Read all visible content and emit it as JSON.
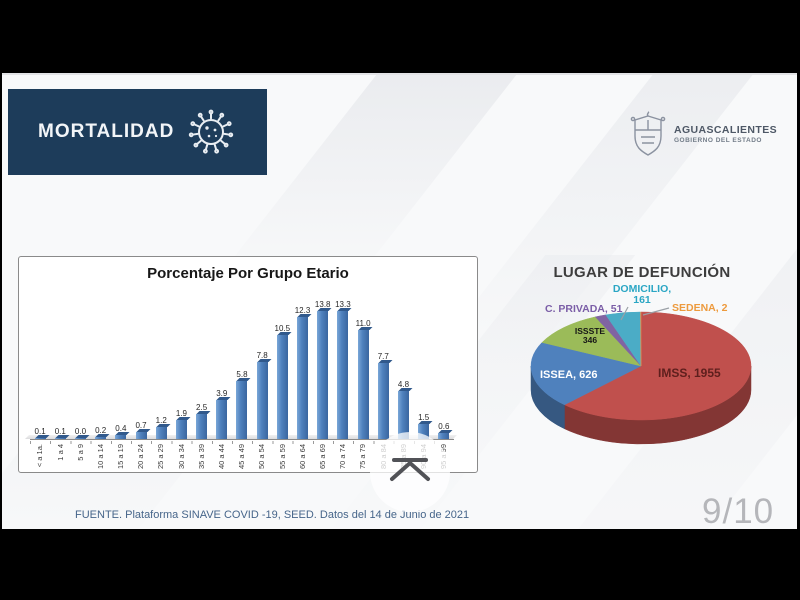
{
  "header": {
    "title": "MORTALIDAD",
    "logo_title": "AGUASCALIENTES",
    "logo_subtitle": "GOBIERNO DEL ESTADO"
  },
  "footer": {
    "source": "FUENTE. Plataforma SINAVE COVID -19, SEED. Datos del 14 de Junio de 2021"
  },
  "frame": {
    "page_indicator": "9/10"
  },
  "watermark": {
    "icon": "chevron-up-with-bar-icon"
  },
  "chart_data": [
    {
      "type": "bar",
      "title": "Porcentaje Por Grupo Etario",
      "categories": [
        "< a 1a.",
        "1 a 4",
        "5 a 9",
        "10 a 14",
        "15 a 19",
        "20 a 24",
        "25 a 29",
        "30 a 34",
        "35 a 39",
        "40 a 44",
        "45 a 49",
        "50 a 54",
        "55 a 59",
        "60 a 64",
        "65 a 69",
        "70 a 74",
        "75 a 79",
        "80 a 84",
        "85 a 89",
        "90 a 94",
        "95 a 99"
      ],
      "values": [
        0.1,
        0.1,
        0.0,
        0.2,
        0.4,
        0.7,
        1.2,
        1.9,
        2.5,
        3.9,
        5.8,
        7.8,
        10.5,
        12.3,
        13.8,
        13.3,
        11.0,
        7.7,
        4.8,
        1.5,
        0.6
      ],
      "bar_color": "#4f81bd",
      "ylim": [
        0,
        15
      ],
      "value_labels": true,
      "effect": "3d",
      "xlabel": "",
      "ylabel": ""
    },
    {
      "type": "pie",
      "title": "LUGAR DE DEFUNCIÓN",
      "effect": "3d",
      "legend_position": "labels-around-pie",
      "series": [
        {
          "name": "IMSS",
          "value": 1955,
          "color": "#c0504d",
          "label": "IMSS, 1955"
        },
        {
          "name": "ISSEA",
          "value": 626,
          "color": "#4f81bd",
          "label": "ISSEA, 626"
        },
        {
          "name": "ISSSTE",
          "value": 346,
          "color": "#9bbb59",
          "label": "ISSSTE 346"
        },
        {
          "name": "C. PRIVADA",
          "value": 51,
          "color": "#8064a2",
          "label": "C. PRIVADA, 51"
        },
        {
          "name": "DOMICILIO",
          "value": 161,
          "color": "#4bacc6",
          "label": "DOMICILIO, 161",
          "label_line1": "DOMICILIO,",
          "label_line2": "161"
        },
        {
          "name": "SEDENA",
          "value": 2,
          "color": "#f79646",
          "label": "SEDENA, 2"
        }
      ]
    }
  ]
}
